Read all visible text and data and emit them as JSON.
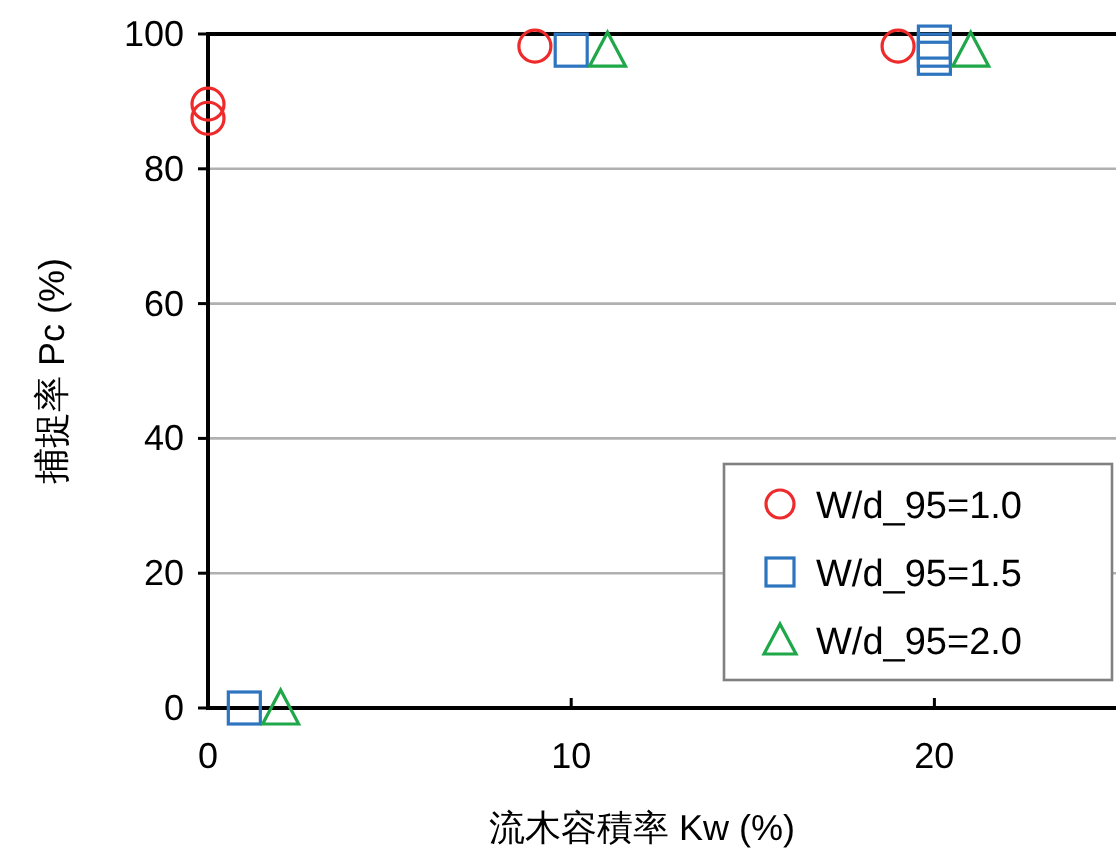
{
  "chart_data": {
    "type": "scatter",
    "xlabel": "流木容積率 Kw (%)",
    "ylabel": "捕捉率 Pc (%)",
    "xlim": [
      0,
      25
    ],
    "ylim": [
      0,
      100
    ],
    "xticks": [
      0,
      10,
      20
    ],
    "yticks": [
      0,
      20,
      40,
      60,
      80,
      100
    ],
    "grid": "y",
    "legend": "bottom right",
    "series": [
      {
        "name": "W/d_95=1.0",
        "color": "#ee2a2a",
        "marker": "circle",
        "x": [
          0,
          0,
          9,
          19
        ],
        "values": [
          89.6,
          87.5,
          98.2,
          98.2
        ]
      },
      {
        "name": "W/d_95=1.5",
        "color": "#2e75c0",
        "marker": "square",
        "x": [
          1,
          10,
          20,
          20,
          20
        ],
        "values": [
          0,
          97.6,
          98.8,
          97.6,
          96.4
        ]
      },
      {
        "name": "W/d_95=2.0",
        "color": "#1fa84a",
        "marker": "triangle",
        "x": [
          2,
          11,
          21
        ],
        "values": [
          0,
          97.6,
          97.6
        ]
      }
    ]
  }
}
